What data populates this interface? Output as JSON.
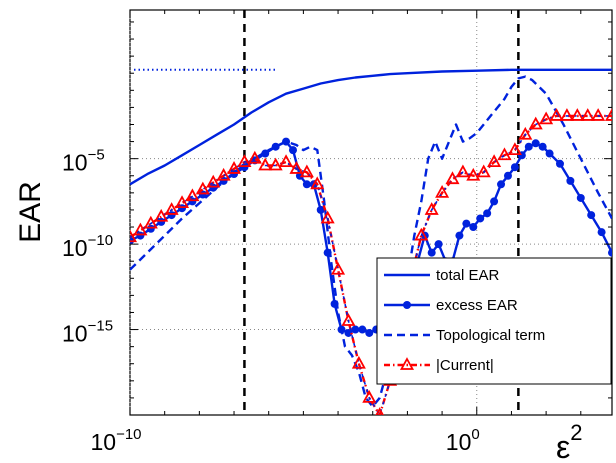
{
  "chart_data": {
    "type": "line",
    "title": "",
    "xlabel": "ε",
    "xlabel_sup": "2",
    "ylabel": "EAR",
    "xscale": "log",
    "yscale": "log",
    "xlim_exp": [
      -10,
      3.9
    ],
    "ylim_exp": [
      -20,
      3.7
    ],
    "xticks": [
      {
        "base": "10",
        "exp": "−10",
        "e": -10
      },
      {
        "base": "10",
        "exp": "0",
        "e": 0
      }
    ],
    "yticks": [
      {
        "base": "10",
        "exp": "−5",
        "e": -5
      },
      {
        "base": "10",
        "exp": "−10",
        "e": -10
      },
      {
        "base": "10",
        "exp": "−15",
        "e": -15
      }
    ],
    "grid": "dotted",
    "legend_position": "bottom-right",
    "vlines_exp": [
      -6.7,
      1.2
    ],
    "colors": {
      "blue": "#0022dd",
      "red": "#ff0000",
      "black": "#000000"
    },
    "series": [
      {
        "name": "total EAR",
        "style": "solid",
        "x": [
          -10,
          -9.5,
          -9,
          -8.5,
          -8,
          -7.5,
          -7,
          -6.5,
          -6,
          -5.5,
          -5,
          -4.5,
          -4,
          -3.5,
          -3,
          -2.5,
          -2,
          -1,
          0,
          1,
          2,
          3,
          3.9
        ],
        "y": [
          -6.5,
          -5.9,
          -5.4,
          -4.8,
          -4.2,
          -3.6,
          -3.0,
          -2.3,
          -1.7,
          -1.2,
          -0.9,
          -0.6,
          -0.4,
          -0.25,
          -0.15,
          -0.05,
          0.0,
          0.1,
          0.15,
          0.2,
          0.2,
          0.2,
          0.2
        ]
      },
      {
        "name": "excess EAR",
        "style": "solid-dot",
        "x": [
          -10,
          -9.7,
          -9.4,
          -9.1,
          -8.8,
          -8.5,
          -8.2,
          -7.9,
          -7.6,
          -7.3,
          -7.0,
          -6.7,
          -6.4,
          -6.1,
          -5.8,
          -5.5,
          -5.3,
          -5.1,
          -4.9,
          -4.7,
          -4.5,
          -4.3,
          -4.1,
          -3.9,
          -3.7,
          -3.5,
          -3.3,
          -3.1,
          -2.9,
          -2.7,
          -2.5,
          -2.3,
          -2.1,
          -1.9,
          -1.7,
          -1.5,
          -1.3,
          -1.1,
          -0.9,
          -0.7,
          -0.5,
          -0.3,
          -0.1,
          0.1,
          0.3,
          0.5,
          0.7,
          0.9,
          1.1,
          1.3,
          1.5,
          1.7,
          1.9,
          2.1,
          2.4,
          2.7,
          3.0,
          3.3,
          3.6,
          3.9
        ],
        "y": [
          -9.8,
          -9.5,
          -9.1,
          -8.7,
          -8.3,
          -7.9,
          -7.5,
          -7.1,
          -6.7,
          -6.3,
          -5.9,
          -5.5,
          -5.1,
          -4.7,
          -4.3,
          -4.0,
          -4.5,
          -6.0,
          -6.5,
          -6.5,
          -8.0,
          -10.5,
          -13.5,
          -15.0,
          -15.2,
          -15.0,
          -15.0,
          -15.2,
          -15.0,
          -15.0,
          -15.2,
          -15.0,
          -14.8,
          -13.0,
          -11.0,
          -9.5,
          -10.5,
          -10.0,
          -11.0,
          -11.0,
          -9.5,
          -8.8,
          -9.0,
          -8.5,
          -8.2,
          -7.5,
          -6.5,
          -6.0,
          -5.5,
          -4.8,
          -4.3,
          -4.1,
          -4.3,
          -4.7,
          -5.3,
          -6.3,
          -7.3,
          -8.3,
          -9.3,
          -10.5
        ]
      },
      {
        "name": "Topological term",
        "style": "dashed",
        "x": [
          -10,
          -9.5,
          -9,
          -8.5,
          -8,
          -7.5,
          -7,
          -6.5,
          -6,
          -5.5,
          -5.2,
          -5,
          -4.8,
          -4.6,
          -4.4,
          -4.2,
          -4.0,
          -3.8,
          -3.6,
          -3.4,
          -3.2,
          -3.0,
          -2.8,
          -2.6,
          -2.4,
          -2.2,
          -2.0,
          -1.8,
          -1.6,
          -1.4,
          -1.2,
          -1.0,
          -0.8,
          -0.6,
          -0.4,
          -0.2,
          0.0,
          0.2,
          0.4,
          0.6,
          0.8,
          1.0,
          1.2,
          1.4,
          1.6,
          2.0,
          2.5,
          3.0,
          3.5,
          3.9
        ],
        "y": [
          -11.5,
          -10.5,
          -9.5,
          -8.5,
          -7.6,
          -6.7,
          -5.8,
          -5.1,
          -4.5,
          -4.0,
          -4.2,
          -4.5,
          -4.3,
          -4.5,
          -7.5,
          -11.0,
          -14.0,
          -16.0,
          -16.5,
          -17.5,
          -19.0,
          -19.5,
          -19.0,
          -17.5,
          -16.0,
          -14.5,
          -12.0,
          -9.5,
          -7.5,
          -5.0,
          -4.0,
          -5.0,
          -4.0,
          -3.0,
          -4.0,
          -3.8,
          -3.5,
          -3.0,
          -2.5,
          -2.0,
          -1.5,
          -0.8,
          -0.3,
          -0.2,
          -0.4,
          -1.2,
          -3.0,
          -5.0,
          -7.0,
          -8.5
        ]
      },
      {
        "name": "|Current|",
        "style": "dashdot-triangle",
        "x": [
          -10,
          -9.7,
          -9.4,
          -9.1,
          -8.8,
          -8.5,
          -8.2,
          -7.9,
          -7.6,
          -7.3,
          -7.0,
          -6.7,
          -6.4,
          -6.1,
          -5.8,
          -5.5,
          -5.2,
          -4.9,
          -4.6,
          -4.3,
          -4.0,
          -3.7,
          -3.4,
          -3.1,
          -2.8,
          -2.5,
          -2.2,
          -1.9,
          -1.6,
          -1.3,
          -1.0,
          -0.7,
          -0.4,
          -0.1,
          0.2,
          0.5,
          0.8,
          1.1,
          1.4,
          1.7,
          2.0,
          2.3,
          2.6,
          2.9,
          3.2,
          3.5,
          3.9
        ],
        "y": [
          -9.6,
          -9.2,
          -8.8,
          -8.4,
          -8.0,
          -7.6,
          -7.2,
          -6.8,
          -6.4,
          -6.0,
          -5.6,
          -5.2,
          -5.0,
          -5.4,
          -5.4,
          -5.2,
          -5.6,
          -5.8,
          -6.5,
          -8.5,
          -11.5,
          -14.5,
          -17.0,
          -19.0,
          -20.0,
          -18.0,
          -15.0,
          -12.0,
          -9.5,
          -8.0,
          -7.0,
          -6.2,
          -5.8,
          -6.0,
          -5.8,
          -5.2,
          -4.8,
          -4.5,
          -3.6,
          -3.0,
          -2.7,
          -2.5,
          -2.5,
          -2.5,
          -2.5,
          -2.5,
          -2.5
        ]
      }
    ]
  }
}
